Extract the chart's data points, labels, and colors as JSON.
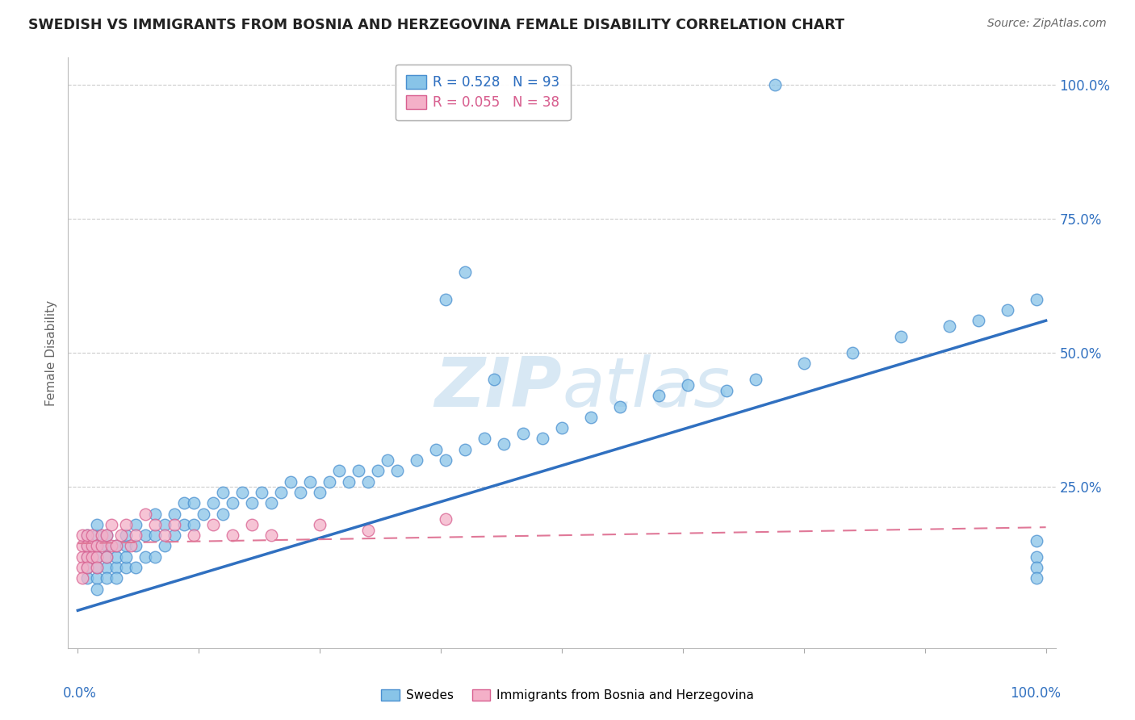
{
  "title": "SWEDISH VS IMMIGRANTS FROM BOSNIA AND HERZEGOVINA FEMALE DISABILITY CORRELATION CHART",
  "source": "Source: ZipAtlas.com",
  "ylabel": "Female Disability",
  "legend_entry1": "R = 0.528   N = 93",
  "legend_entry2": "R = 0.055   N = 38",
  "legend_label1": "Swedes",
  "legend_label2": "Immigrants from Bosnia and Herzegovina",
  "color_blue": "#88c4e8",
  "color_blue_edge": "#4a90d0",
  "color_blue_line": "#3070c0",
  "color_pink": "#f4b0c8",
  "color_pink_edge": "#d86090",
  "color_pink_line": "#e07898",
  "watermark_color": "#d8e8f4",
  "r1": 0.528,
  "n1": 93,
  "r2": 0.055,
  "n2": 38,
  "swedish_x": [
    0.01,
    0.01,
    0.01,
    0.01,
    0.01,
    0.02,
    0.02,
    0.02,
    0.02,
    0.02,
    0.02,
    0.02,
    0.03,
    0.03,
    0.03,
    0.03,
    0.03,
    0.04,
    0.04,
    0.04,
    0.04,
    0.05,
    0.05,
    0.05,
    0.05,
    0.06,
    0.06,
    0.06,
    0.07,
    0.07,
    0.08,
    0.08,
    0.08,
    0.09,
    0.09,
    0.1,
    0.1,
    0.11,
    0.11,
    0.12,
    0.12,
    0.13,
    0.14,
    0.15,
    0.15,
    0.16,
    0.17,
    0.18,
    0.19,
    0.2,
    0.21,
    0.22,
    0.23,
    0.24,
    0.25,
    0.26,
    0.27,
    0.28,
    0.29,
    0.3,
    0.31,
    0.32,
    0.33,
    0.35,
    0.37,
    0.38,
    0.4,
    0.42,
    0.44,
    0.46,
    0.48,
    0.5,
    0.53,
    0.56,
    0.6,
    0.63,
    0.67,
    0.7,
    0.75,
    0.8,
    0.85,
    0.9,
    0.93,
    0.96,
    0.99,
    0.99,
    0.99,
    0.99,
    0.99,
    0.38,
    0.4,
    0.43,
    0.72
  ],
  "swedish_y": [
    0.1,
    0.12,
    0.14,
    0.08,
    0.16,
    0.1,
    0.12,
    0.08,
    0.14,
    0.06,
    0.16,
    0.18,
    0.1,
    0.12,
    0.14,
    0.08,
    0.16,
    0.1,
    0.12,
    0.14,
    0.08,
    0.1,
    0.12,
    0.14,
    0.16,
    0.1,
    0.14,
    0.18,
    0.12,
    0.16,
    0.12,
    0.16,
    0.2,
    0.14,
    0.18,
    0.16,
    0.2,
    0.18,
    0.22,
    0.18,
    0.22,
    0.2,
    0.22,
    0.2,
    0.24,
    0.22,
    0.24,
    0.22,
    0.24,
    0.22,
    0.24,
    0.26,
    0.24,
    0.26,
    0.24,
    0.26,
    0.28,
    0.26,
    0.28,
    0.26,
    0.28,
    0.3,
    0.28,
    0.3,
    0.32,
    0.3,
    0.32,
    0.34,
    0.33,
    0.35,
    0.34,
    0.36,
    0.38,
    0.4,
    0.42,
    0.44,
    0.43,
    0.45,
    0.48,
    0.5,
    0.53,
    0.55,
    0.56,
    0.58,
    0.6,
    0.15,
    0.12,
    0.1,
    0.08,
    0.6,
    0.65,
    0.45,
    1.0
  ],
  "bosnian_x": [
    0.005,
    0.005,
    0.005,
    0.005,
    0.005,
    0.01,
    0.01,
    0.01,
    0.01,
    0.015,
    0.015,
    0.015,
    0.02,
    0.02,
    0.02,
    0.025,
    0.025,
    0.03,
    0.03,
    0.035,
    0.035,
    0.04,
    0.045,
    0.05,
    0.055,
    0.06,
    0.07,
    0.08,
    0.09,
    0.1,
    0.12,
    0.14,
    0.16,
    0.18,
    0.2,
    0.25,
    0.3,
    0.38
  ],
  "bosnian_y": [
    0.12,
    0.14,
    0.1,
    0.16,
    0.08,
    0.12,
    0.14,
    0.1,
    0.16,
    0.12,
    0.14,
    0.16,
    0.12,
    0.14,
    0.1,
    0.14,
    0.16,
    0.12,
    0.16,
    0.14,
    0.18,
    0.14,
    0.16,
    0.18,
    0.14,
    0.16,
    0.2,
    0.18,
    0.16,
    0.18,
    0.16,
    0.18,
    0.16,
    0.18,
    0.16,
    0.18,
    0.17,
    0.19
  ],
  "trend_sw_x0": 0.0,
  "trend_sw_y0": 0.02,
  "trend_sw_x1": 1.0,
  "trend_sw_y1": 0.56,
  "trend_bo_x0": 0.0,
  "trend_bo_y0": 0.145,
  "trend_bo_x1": 1.0,
  "trend_bo_y1": 0.175,
  "ylim_min": -0.05,
  "ylim_max": 1.05,
  "xlim_min": -0.01,
  "xlim_max": 1.01
}
